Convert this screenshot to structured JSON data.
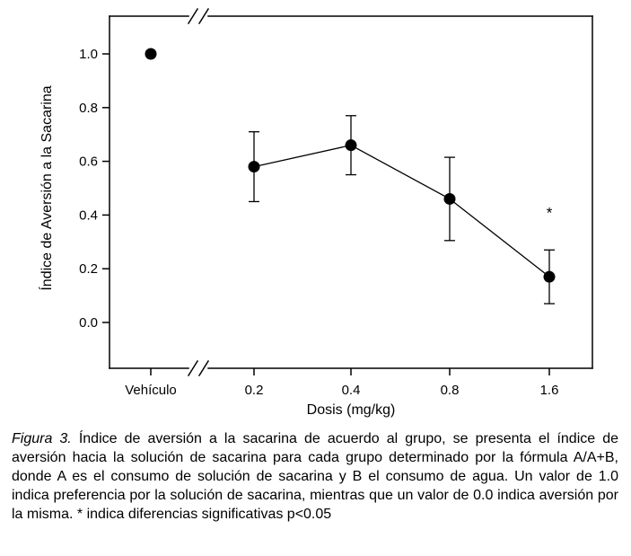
{
  "caption": {
    "label": "Figura 3.",
    "text": "Índice de aversión a la sacarina de acuerdo al grupo, se presenta el índice de aversión hacia la solución de sacarina para cada grupo determinado por la fórmula A/A+B, donde A es el consumo de solución de sacarina y B el consumo de agua. Un valor de 1.0 indica preferencia por la solución de sacarina, mientras que un valor de 0.0 indica aversión por la misma. * indica diferencias significativas p<0.05"
  },
  "chart_data": {
    "type": "line",
    "title": "",
    "xlabel": "Dosis (mg/kg)",
    "ylabel": "Índice de Aversión a la Sacarina",
    "ylim": [
      0.0,
      1.0
    ],
    "yticks": [
      0.0,
      0.2,
      0.4,
      0.6,
      0.8,
      1.0
    ],
    "categories": [
      "Vehículo",
      "0.2",
      "0.4",
      "0.8",
      "1.6"
    ],
    "x_axis_break": {
      "after_category_index": 0
    },
    "grid": false,
    "legend": false,
    "marker": {
      "shape": "circle",
      "color": "#000000"
    },
    "line_color": "#000000",
    "series": [
      {
        "name": "Índice de aversión a la sacarina",
        "values": [
          1.0,
          0.58,
          0.66,
          0.46,
          0.17
        ],
        "error": [
          0,
          0.13,
          0.11,
          0.155,
          0.1
        ],
        "connect_from_index": 1
      }
    ],
    "annotations": [
      {
        "category_index": 4,
        "y": 0.41,
        "text": "*"
      }
    ]
  }
}
